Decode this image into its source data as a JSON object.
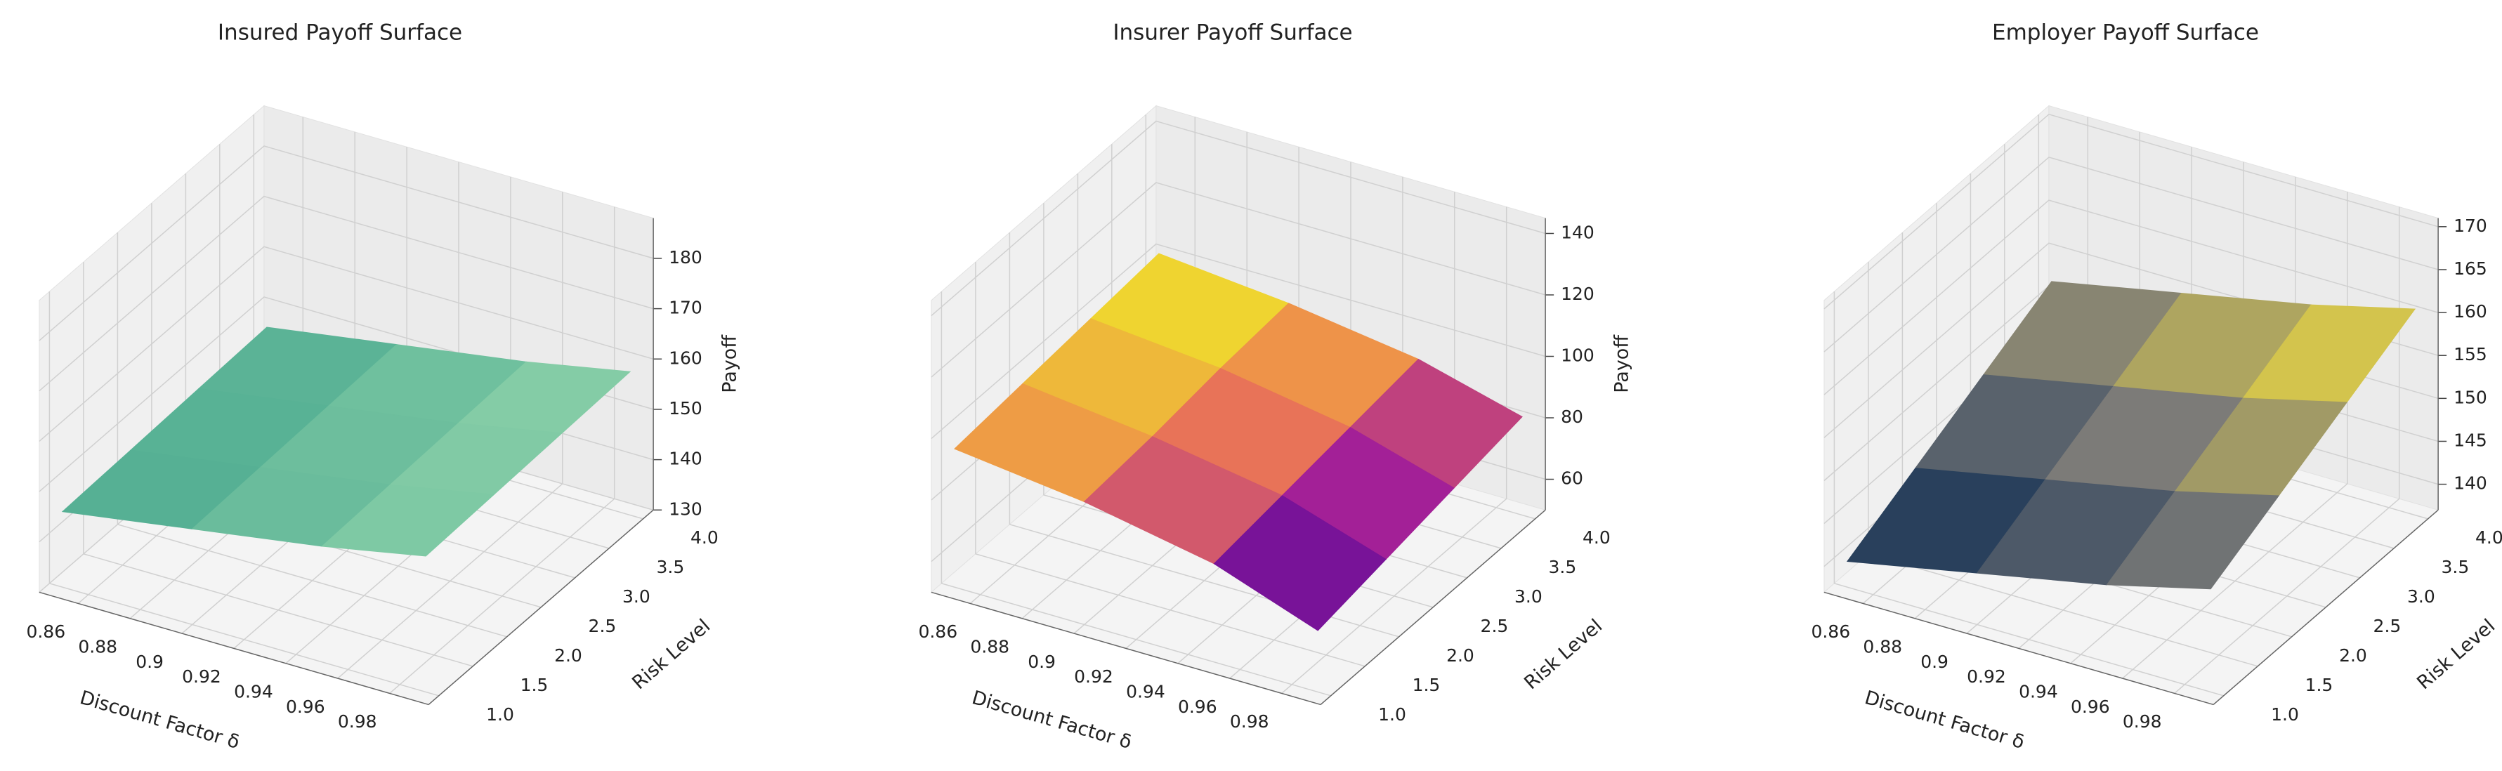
{
  "chart_data": [
    {
      "type": "surface3d",
      "title": "Insured Payoff Surface",
      "xlabel": "Discount Factor δ",
      "ylabel": "Risk Level",
      "zlabel": "Payoff",
      "x": [
        0.85,
        0.9,
        0.95,
        0.99
      ],
      "y": [
        1,
        2,
        3,
        4
      ],
      "z": [
        [
          145,
          149,
          153,
          157
        ],
        [
          145.5,
          149.5,
          153.5,
          157.5
        ],
        [
          146,
          150,
          154,
          158
        ],
        [
          146.5,
          150.5,
          154.5,
          158.5
        ]
      ],
      "xlim": [
        0.845,
        0.995
      ],
      "ylim": [
        0.85,
        4.15
      ],
      "zlim": [
        130,
        188
      ],
      "xticks": [
        0.86,
        0.88,
        0.9,
        0.92,
        0.94,
        0.96,
        0.98
      ],
      "yticks": [
        {
          "value": 1,
          "label": "1.0"
        },
        1.5,
        {
          "value": 2,
          "label": "2.0"
        },
        2.5,
        {
          "value": 3,
          "label": "3.0"
        },
        3.5,
        {
          "value": 4,
          "label": "4.0"
        }
      ],
      "zticks": [
        130,
        140,
        150,
        160,
        170,
        180
      ],
      "colors": [
        "#4aa98f",
        "#8fd3ab"
      ]
    },
    {
      "type": "surface3d",
      "title": "Insurer Payoff Surface",
      "xlabel": "Discount Factor δ",
      "ylabel": "Risk Level",
      "zlabel": "Payoff",
      "x": [
        0.85,
        0.9,
        0.95,
        0.99
      ],
      "y": [
        1,
        2,
        3,
        4
      ],
      "z": [
        [
          95,
          90,
          82,
          70
        ],
        [
          97,
          92,
          85,
          74
        ],
        [
          99,
          95,
          88,
          78
        ],
        [
          101,
          97,
          91,
          82
        ]
      ],
      "xlim": [
        0.845,
        0.995
      ],
      "ylim": [
        0.85,
        4.15
      ],
      "zlim": [
        50,
        145
      ],
      "xticks": [
        0.86,
        0.88,
        0.9,
        0.92,
        0.94,
        0.96,
        0.98
      ],
      "yticks": [
        {
          "value": 1,
          "label": "1.0"
        },
        1.5,
        {
          "value": 2,
          "label": "2.0"
        },
        2.5,
        {
          "value": 3,
          "label": "3.0"
        },
        3.5,
        {
          "value": 4,
          "label": "4.0"
        }
      ],
      "zticks": [
        60,
        80,
        100,
        120,
        140
      ],
      "colors": [
        "#0d0887",
        "#9c179e",
        "#ed7953",
        "#f0f921"
      ]
    },
    {
      "type": "surface3d",
      "title": "Employer Payoff Surface",
      "xlabel": "Discount Factor δ",
      "ylabel": "Risk Level",
      "x": [
        0.85,
        0.9,
        0.95,
        0.99
      ],
      "y": [
        1,
        2,
        3,
        4
      ],
      "z": [
        [
          140,
          143,
          146,
          149
        ],
        [
          144,
          147,
          150,
          153
        ],
        [
          148,
          151,
          154,
          157
        ],
        [
          152,
          155,
          158,
          161
        ]
      ],
      "xlim": [
        0.845,
        0.995
      ],
      "ylim": [
        0.85,
        4.15
      ],
      "zlim": [
        137,
        171
      ],
      "xticks": [
        0.86,
        0.88,
        0.9,
        0.92,
        0.94,
        0.96,
        0.98
      ],
      "yticks": [
        {
          "value": 1,
          "label": "1.0"
        },
        1.5,
        {
          "value": 2,
          "label": "2.0"
        },
        2.5,
        {
          "value": 3,
          "label": "3.0"
        },
        3.5,
        {
          "value": 4,
          "label": "4.0"
        }
      ],
      "zticks": [
        140,
        145,
        150,
        155,
        160,
        165,
        170
      ],
      "colors": [
        "#00224e",
        "#7c7b78",
        "#fee838"
      ]
    }
  ]
}
